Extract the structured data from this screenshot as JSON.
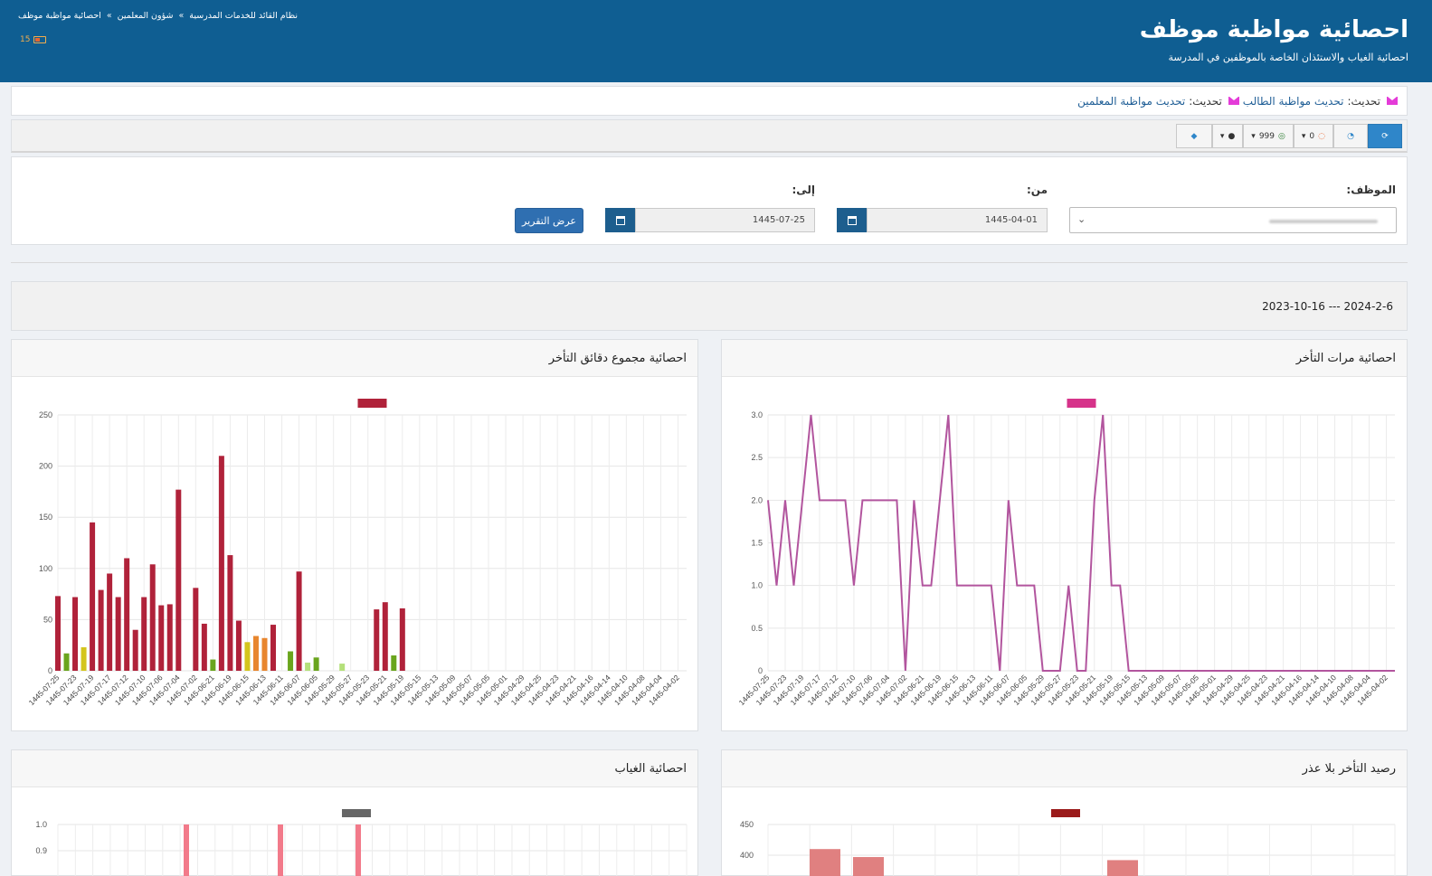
{
  "header": {
    "title": "احصائية مواظبة موظف",
    "subtitle": "احصائية الغياب والاستئذان الخاصة بالموظفين في المدرسة",
    "breadcrumb": [
      "نظام القائد للخدمات المدرسية",
      "شؤون المعلمين",
      "احصائية مواظبة موظف"
    ],
    "battery": "15"
  },
  "updates": {
    "prefix1": "تحديث:",
    "link1": "تحديث مواظبة الطالب",
    "prefix2": "تحديث:",
    "link2": "تحديث مواظبة المعلمين"
  },
  "toolbar": {
    "messages_count": "0",
    "whatsapp_count": "999",
    "icons": [
      "refresh-icon",
      "dashboard-icon",
      "comment-icon",
      "whatsapp-icon",
      "user-icon",
      "tag-icon"
    ]
  },
  "filters": {
    "employee_label": "الموظف:",
    "from_label": "من:",
    "to_label": "إلى:",
    "from_value": "1445-04-01",
    "to_value": "1445-07-25",
    "submit_label": "عرض التقرير"
  },
  "range_text": "2023-10-16 --- 2024-2-6",
  "colors": {
    "header": "#0f5e92",
    "late_minutes": "#b0223a",
    "late_count_line": "#b2559e",
    "late_count_legend": "#d6338a",
    "absence": "#f27a8a",
    "balance": "#e08080"
  },
  "chart_data": [
    {
      "type": "line",
      "title": "احصائية مرات التأخر",
      "x": [
        "1445-07-25",
        "1445-07-24",
        "1445-07-23",
        "1445-07-22",
        "1445-07-19",
        "1445-07-18",
        "1445-07-17",
        "1445-07-16",
        "1445-07-12",
        "1445-07-11",
        "1445-07-10",
        "1445-07-09",
        "1445-07-06",
        "1445-07-05",
        "1445-07-04",
        "1445-07-03",
        "1445-07-02",
        "1445-07-01",
        "1445-06-21",
        "1445-06-20",
        "1445-06-19",
        "1445-06-18",
        "1445-06-15",
        "1445-06-14",
        "1445-06-13",
        "1445-06-12",
        "1445-06-11",
        "1445-06-08",
        "1445-06-07",
        "1445-06-06",
        "1445-06-05",
        "1445-05-30",
        "1445-05-29",
        "1445-05-28",
        "1445-05-27",
        "1445-05-24",
        "1445-05-23",
        "1445-05-22",
        "1445-05-21",
        "1445-05-20",
        "1445-05-19",
        "1445-05-16",
        "1445-05-15",
        "1445-05-14",
        "1445-05-13",
        "1445-05-10",
        "1445-05-09",
        "1445-05-08",
        "1445-05-07",
        "1445-05-06",
        "1445-05-05",
        "1445-05-02",
        "1445-05-01",
        "1445-04-30",
        "1445-04-29",
        "1445-04-28",
        "1445-04-25",
        "1445-04-24",
        "1445-04-23",
        "1445-04-22",
        "1445-04-21",
        "1445-04-18",
        "1445-04-16",
        "1445-04-15",
        "1445-04-14",
        "1445-04-11",
        "1445-04-10",
        "1445-04-09",
        "1445-04-08",
        "1445-04-07",
        "1445-04-04",
        "1445-04-03",
        "1445-04-02",
        "1445-04-01"
      ],
      "x_tick_labels": [
        "1445-07-25",
        "1445-07-23",
        "1445-07-19",
        "1445-07-17",
        "1445-07-12",
        "1445-07-10",
        "1445-07-06",
        "1445-07-04",
        "1445-07-02",
        "1445-06-21",
        "1445-06-19",
        "1445-06-15",
        "1445-06-13",
        "1445-06-11",
        "1445-06-07",
        "1445-06-05",
        "1445-05-29",
        "1445-05-27",
        "1445-05-23",
        "1445-05-21",
        "1445-05-19",
        "1445-05-15",
        "1445-05-13",
        "1445-05-09",
        "1445-05-07",
        "1445-05-05",
        "1445-05-01",
        "1445-04-29",
        "1445-04-25",
        "1445-04-23",
        "1445-04-21",
        "1445-04-16",
        "1445-04-14",
        "1445-04-10",
        "1445-04-08",
        "1445-04-04",
        "1445-04-02"
      ],
      "values": [
        2,
        1,
        2,
        1,
        2,
        3,
        2,
        2,
        2,
        2,
        1,
        2,
        2,
        2,
        2,
        2,
        0,
        2,
        1,
        1,
        2,
        3,
        1,
        1,
        1,
        1,
        1,
        0,
        2,
        1,
        1,
        1,
        0,
        0,
        0,
        1,
        0,
        0,
        2,
        3,
        1,
        1,
        0,
        0,
        0,
        0,
        0,
        0,
        0,
        0,
        0,
        0,
        0,
        0,
        0,
        0,
        0,
        0,
        0,
        0,
        0,
        0,
        0,
        0,
        0,
        0,
        0,
        0,
        0,
        0,
        0,
        0,
        0,
        0
      ],
      "ylim": [
        0,
        3
      ],
      "yticks": [
        "0",
        "0.5",
        "1.0",
        "1.5",
        "2.0",
        "2.5",
        "3.0"
      ]
    },
    {
      "type": "bar",
      "title": "احصائية مجموع دقائق التأخر",
      "x_tick_labels": [
        "1445-07-25",
        "1445-07-23",
        "1445-07-19",
        "1445-07-17",
        "1445-07-12",
        "1445-07-10",
        "1445-07-06",
        "1445-07-04",
        "1445-07-02",
        "1445-06-21",
        "1445-06-19",
        "1445-06-15",
        "1445-06-13",
        "1445-06-11",
        "1445-06-07",
        "1445-06-05",
        "1445-05-29",
        "1445-05-27",
        "1445-05-23",
        "1445-05-21",
        "1445-05-19",
        "1445-05-15",
        "1445-05-13",
        "1445-05-09",
        "1445-05-07",
        "1445-05-05",
        "1445-05-01",
        "1445-04-29",
        "1445-04-25",
        "1445-04-23",
        "1445-04-21",
        "1445-04-16",
        "1445-04-14",
        "1445-04-10",
        "1445-04-08",
        "1445-04-04",
        "1445-04-02"
      ],
      "values": [
        73,
        17,
        72,
        23,
        145,
        79,
        95,
        72,
        110,
        40,
        72,
        104,
        64,
        65,
        177,
        0,
        81,
        46,
        11,
        210,
        113,
        49,
        28,
        34,
        32,
        45,
        0,
        19,
        97,
        8,
        13,
        0,
        0,
        7,
        0,
        0,
        0,
        60,
        67,
        15,
        61,
        0,
        0,
        0,
        0,
        0,
        0,
        0,
        0,
        0,
        0,
        0,
        0,
        0,
        0,
        0,
        0,
        0,
        0,
        0,
        0,
        0,
        0,
        0,
        0,
        0,
        0,
        0,
        0,
        0,
        0,
        0,
        0,
        0
      ],
      "ylim": [
        0,
        250
      ],
      "yticks": [
        "0",
        "50",
        "100",
        "150",
        "200",
        "250"
      ]
    },
    {
      "type": "bar",
      "title": "رصيد التأخر بلا عذر",
      "visible_values": [
        410,
        397,
        392
      ],
      "yticks_visible": [
        "400",
        "450"
      ]
    },
    {
      "type": "bar",
      "title": "احصائية الغياب",
      "visible_values": [
        1,
        1,
        1
      ],
      "yticks_visible": [
        "0.9",
        "1.0"
      ]
    }
  ]
}
